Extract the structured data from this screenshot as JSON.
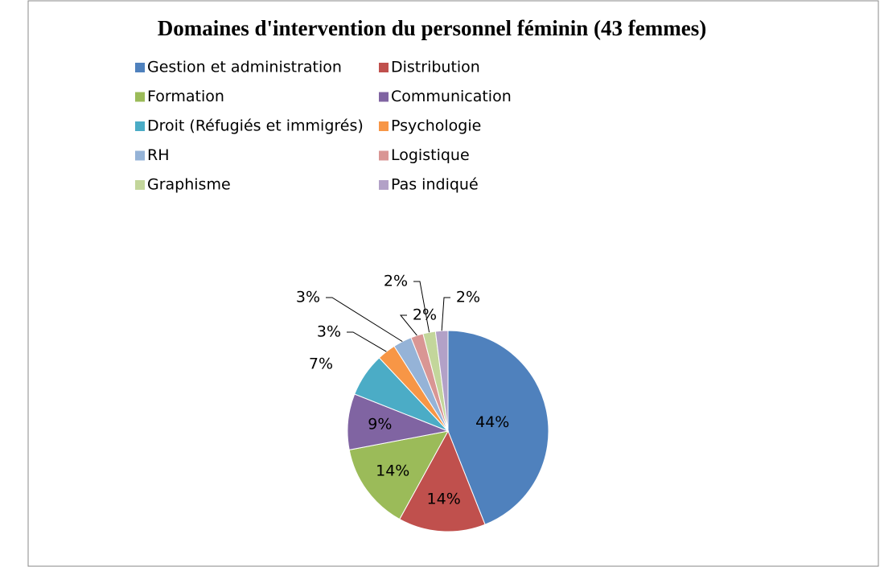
{
  "chart_data": {
    "type": "pie",
    "title": "Domaines d'intervention du personnel féminin (43 femmes)",
    "categories": [
      "Gestion et administration",
      "Distribution",
      "Formation",
      "Communication",
      "Droit (Réfugiés et immigrés)",
      "Psychologie",
      "RH",
      "Logistique",
      "Graphisme",
      "Pas indiqué"
    ],
    "values": [
      44,
      14,
      14,
      9,
      7,
      3,
      3,
      2,
      2,
      2
    ],
    "value_labels": [
      "44%",
      "14%",
      "14%",
      "9%",
      "7%",
      "3%",
      "3%",
      "2%",
      "2%",
      "2%"
    ],
    "colors": [
      "#4f81bd",
      "#c0504d",
      "#9bbb59",
      "#8064a2",
      "#4bacc6",
      "#f79646",
      "#95b3d7",
      "#d99694",
      "#c3d69b",
      "#b2a1c7"
    ],
    "legend": "top"
  }
}
